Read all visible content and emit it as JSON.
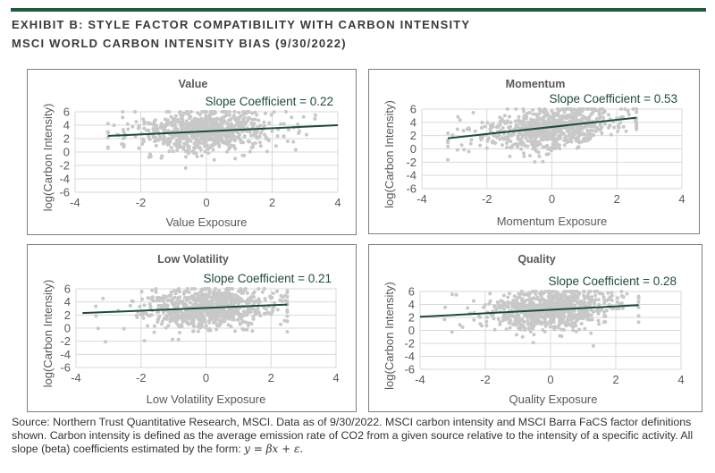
{
  "header": {
    "title_line1": "EXHIBIT B: STYLE FACTOR COMPATIBILITY WITH CARBON INTENSITY",
    "title_line2": "MSCI WORLD CARBON INTENSITY BIAS (9/30/2022)"
  },
  "colors": {
    "rule": "#1f5a3a",
    "points": "#c8c8c8",
    "trendline": "#1d4d36",
    "grid": "#d9d9d9"
  },
  "chart_data": [
    {
      "type": "scatter",
      "title": "Value",
      "annotation": "Slope Coefficient = 0.22",
      "slope": 0.22,
      "xlabel": "Value Exposure",
      "ylabel": "log(Carbon Intensity)",
      "xlim": [
        -4,
        4
      ],
      "ylim": [
        -6,
        6
      ],
      "xticks": [
        "-4",
        "-2",
        "0",
        "2",
        "4"
      ],
      "yticks": [
        "6",
        "4",
        "2",
        "0",
        "-2",
        "-4",
        "-6"
      ],
      "grid": true,
      "trendline": {
        "x": [
          -3.0,
          4.0
        ],
        "y": [
          2.4,
          4.0
        ]
      }
    },
    {
      "type": "scatter",
      "title": "Momentum",
      "annotation": "Slope Coefficient = 0.53",
      "slope": 0.53,
      "xlabel": "Momentum Exposure",
      "ylabel": "log(Carbon Intensity)",
      "xlim": [
        -4,
        4
      ],
      "ylim": [
        -6,
        6
      ],
      "xticks": [
        "-4",
        "-2",
        "0",
        "2",
        "4"
      ],
      "yticks": [
        "6",
        "4",
        "2",
        "0",
        "-2",
        "-4",
        "-6"
      ],
      "grid": true,
      "trendline": {
        "x": [
          -3.2,
          2.6
        ],
        "y": [
          1.6,
          4.7
        ]
      }
    },
    {
      "type": "scatter",
      "title": "Low Volatility",
      "annotation": "Slope Coefficient = 0.21",
      "slope": 0.21,
      "xlabel": "Low Volatility Exposure",
      "ylabel": "log(Carbon Intensity)",
      "xlim": [
        -4,
        4
      ],
      "ylim": [
        -6,
        6
      ],
      "xticks": [
        "-4",
        "-2",
        "0",
        "2",
        "4"
      ],
      "yticks": [
        "6",
        "4",
        "2",
        "0",
        "-2",
        "-4",
        "-6"
      ],
      "grid": true,
      "trendline": {
        "x": [
          -3.8,
          2.5
        ],
        "y": [
          2.3,
          3.6
        ]
      }
    },
    {
      "type": "scatter",
      "title": "Quality",
      "annotation": "Slope Coefficient = 0.28",
      "slope": 0.28,
      "xlabel": "Quality Exposure",
      "ylabel": "log(Carbon Intensity)",
      "xlim": [
        -4,
        4
      ],
      "ylim": [
        -6,
        6
      ],
      "xticks": [
        "-4",
        "-2",
        "0",
        "2",
        "4"
      ],
      "yticks": [
        "6",
        "4",
        "2",
        "0",
        "-2",
        "-4",
        "-6"
      ],
      "grid": true,
      "trendline": {
        "x": [
          -4.0,
          2.7
        ],
        "y": [
          2.1,
          3.9
        ]
      }
    }
  ],
  "footer": {
    "text": "Source: Northern Trust Quantitative Research, MSCI. Data as of 9/30/2022. MSCI carbon intensity and MSCI Barra FaCS factor definitions shown. Carbon intensity is defined as the average emission rate of CO2 from a given source relative to the intensity of a specific activity. All slope (beta) coefficients estimated by the form: ",
    "formula": "y = βx + ε."
  }
}
